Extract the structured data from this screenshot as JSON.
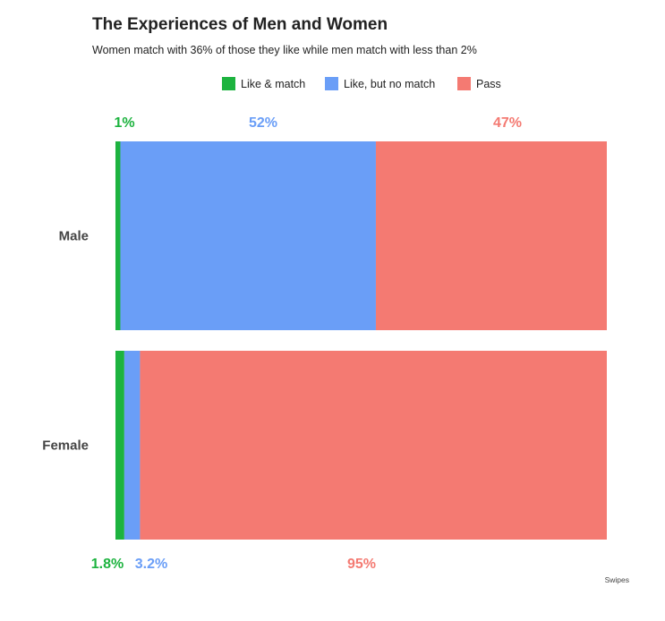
{
  "chart_data": {
    "type": "bar",
    "orientation": "horizontal",
    "stacked": true,
    "title": "The Experiences of Men and Women",
    "subtitle": "Women match with 36% of those they like while men match with less than 2%",
    "categories": [
      "Male",
      "Female"
    ],
    "series": [
      {
        "name": "Like & match",
        "color": "#1db33f",
        "values": [
          1,
          1.8
        ],
        "labels": [
          "1%",
          "1.8%"
        ]
      },
      {
        "name": "Like, but no match",
        "color": "#6a9ef7",
        "values": [
          52,
          3.2
        ],
        "labels": [
          "52%",
          "3.2%"
        ]
      },
      {
        "name": "Pass",
        "color": "#f47a72",
        "values": [
          47,
          95
        ],
        "labels": [
          "47%",
          "95%"
        ]
      }
    ],
    "xlim": [
      0,
      100
    ],
    "grid": false,
    "legend_position": "top",
    "source": "Swipes"
  }
}
